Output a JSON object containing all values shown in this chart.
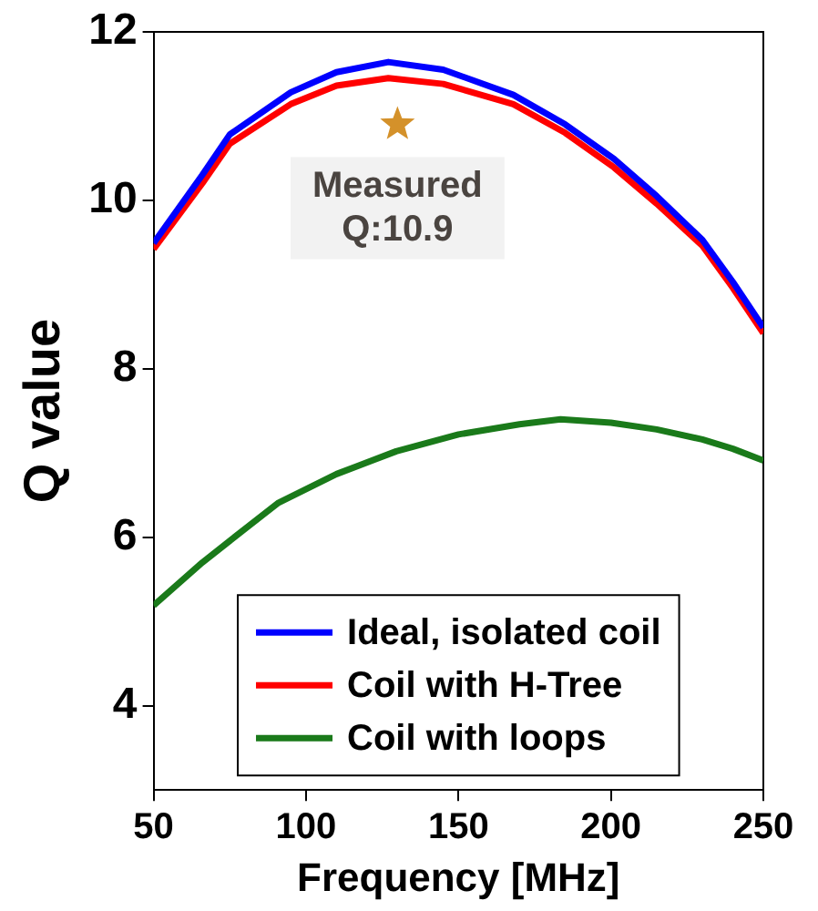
{
  "chart_data": {
    "type": "line",
    "xlabel": "Frequency [MHz]",
    "ylabel": "Q value",
    "xlim": [
      50,
      250
    ],
    "xticks": [
      50,
      100,
      150,
      200,
      250
    ],
    "ylim": [
      3,
      12
    ],
    "yticks": [
      4,
      6,
      8,
      10,
      12
    ],
    "grid": false,
    "legend": "bottom",
    "marker": "none",
    "line_style": "solid",
    "annotations": [
      {
        "text": "Measured Q:10.9",
        "x": 130,
        "y": 10.9
      }
    ],
    "series": [
      {
        "name": "Ideal, isolated coil",
        "color": "#0000ff",
        "x": [
          50,
          66,
          75,
          95,
          110,
          127,
          145,
          168,
          185,
          201,
          215,
          230,
          240,
          250
        ],
        "values": [
          9.49,
          10.3,
          10.78,
          11.28,
          11.52,
          11.64,
          11.55,
          11.25,
          10.9,
          10.49,
          10.05,
          9.53,
          9.03,
          8.49
        ]
      },
      {
        "name": "Coil with H-Tree",
        "color": "#ff0000",
        "x": [
          50,
          66,
          75,
          95,
          110,
          127,
          145,
          168,
          185,
          201,
          215,
          230,
          240,
          250
        ],
        "values": [
          9.42,
          10.2,
          10.67,
          11.14,
          11.36,
          11.45,
          11.38,
          11.14,
          10.8,
          10.39,
          9.96,
          9.46,
          8.96,
          8.42
        ]
      },
      {
        "name": "Coil with loops",
        "color": "#1a7a1a",
        "x": [
          50,
          66,
          80,
          91,
          110,
          129.6,
          150,
          170,
          183.5,
          200,
          215,
          230,
          240,
          250
        ],
        "values": [
          5.19,
          5.7,
          6.1,
          6.41,
          6.75,
          7.02,
          7.22,
          7.34,
          7.4,
          7.36,
          7.28,
          7.16,
          7.05,
          6.91
        ]
      },
      {
        "type": "scatter",
        "marker": "star",
        "color": "#d4912a",
        "x": [
          130
        ],
        "values": [
          10.9
        ]
      }
    ]
  }
}
